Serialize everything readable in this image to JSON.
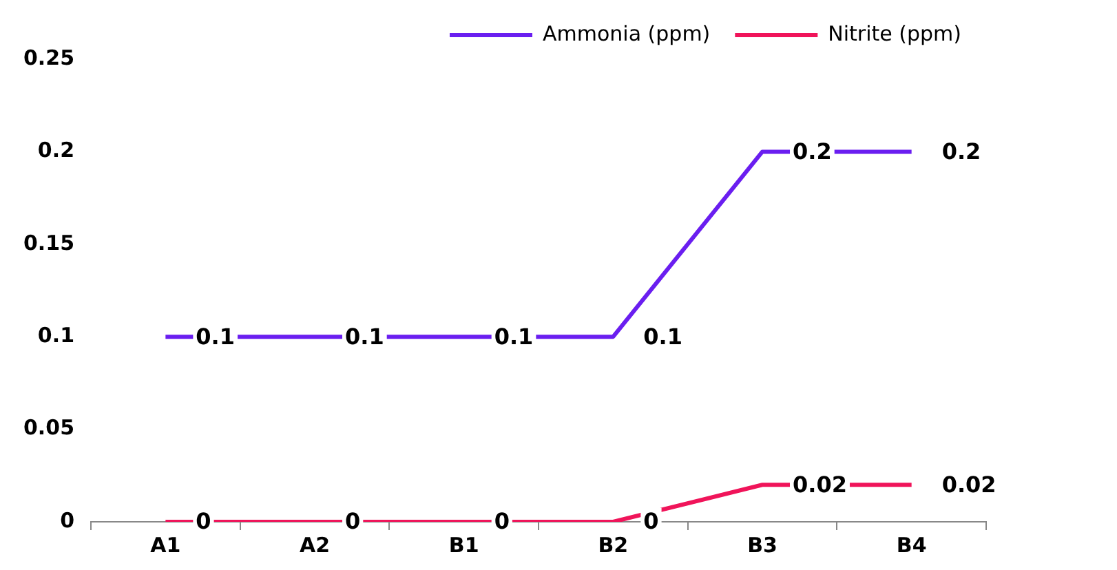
{
  "chart_data": {
    "type": "line",
    "categories": [
      "A1",
      "A2",
      "B1",
      "B2",
      "B3",
      "B4"
    ],
    "series": [
      {
        "name": "Ammonia (ppm)",
        "color": "#6a1ef0",
        "values": [
          0.1,
          0.1,
          0.1,
          0.1,
          0.2,
          0.2
        ]
      },
      {
        "name": "Nitrite (ppm)",
        "color": "#f0145a",
        "values": [
          0,
          0,
          0,
          0,
          0.02,
          0.02
        ]
      }
    ],
    "ylim": [
      0,
      0.25
    ],
    "yticks": [
      0,
      0.05,
      0.1,
      0.15,
      0.2,
      0.25
    ],
    "grid": false,
    "legend": "top right",
    "marker": "none",
    "line_style": "solid",
    "data_labels": true
  }
}
